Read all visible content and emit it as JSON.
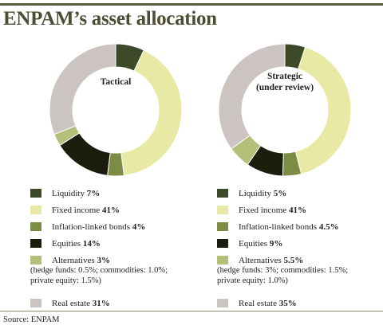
{
  "title": "ENPAM’s asset allocation",
  "source": "Source: ENPAM",
  "chart_data": [
    {
      "type": "pie",
      "center_label": "Tactical",
      "slices": [
        {
          "label": "Liquidity",
          "value": 7,
          "display": "7%",
          "color": "#3d4a2a"
        },
        {
          "label": "Fixed income",
          "value": 41,
          "display": "41%",
          "color": "#e9e9a6"
        },
        {
          "label": "Inflation-linked bonds",
          "value": 4,
          "display": "4%",
          "color": "#7d8c45"
        },
        {
          "label": "Equities",
          "value": 14,
          "display": "14%",
          "color": "#1d1d0d"
        },
        {
          "label": "Alternatives",
          "value": 3,
          "display": "3%",
          "color": "#b3c07a",
          "note": "(hedge funds: 0.5%; commodities: 1.0%;\nprivate equity: 1.5%)"
        },
        {
          "label": "Real estate",
          "value": 31,
          "display": "31%",
          "color": "#cbc4c1"
        }
      ]
    },
    {
      "type": "pie",
      "center_label": "Strategic\n(under review)",
      "slices": [
        {
          "label": "Liquidity",
          "value": 5,
          "display": "5%",
          "color": "#3d4a2a"
        },
        {
          "label": "Fixed income",
          "value": 41,
          "display": "41%",
          "color": "#e9e9a6"
        },
        {
          "label": "Inflation-linked bonds",
          "value": 4.5,
          "display": "4.5%",
          "color": "#7d8c45"
        },
        {
          "label": "Equities",
          "value": 9,
          "display": "9%",
          "color": "#1d1d0d"
        },
        {
          "label": "Alternatives",
          "value": 5.5,
          "display": "5.5%",
          "color": "#b3c07a",
          "note": "(hedge funds: 3%; commodities: 1.5%;\nprivate equity: 1.0%)"
        },
        {
          "label": "Real estate",
          "value": 35,
          "display": "35%",
          "color": "#cbc4c1"
        }
      ]
    }
  ]
}
